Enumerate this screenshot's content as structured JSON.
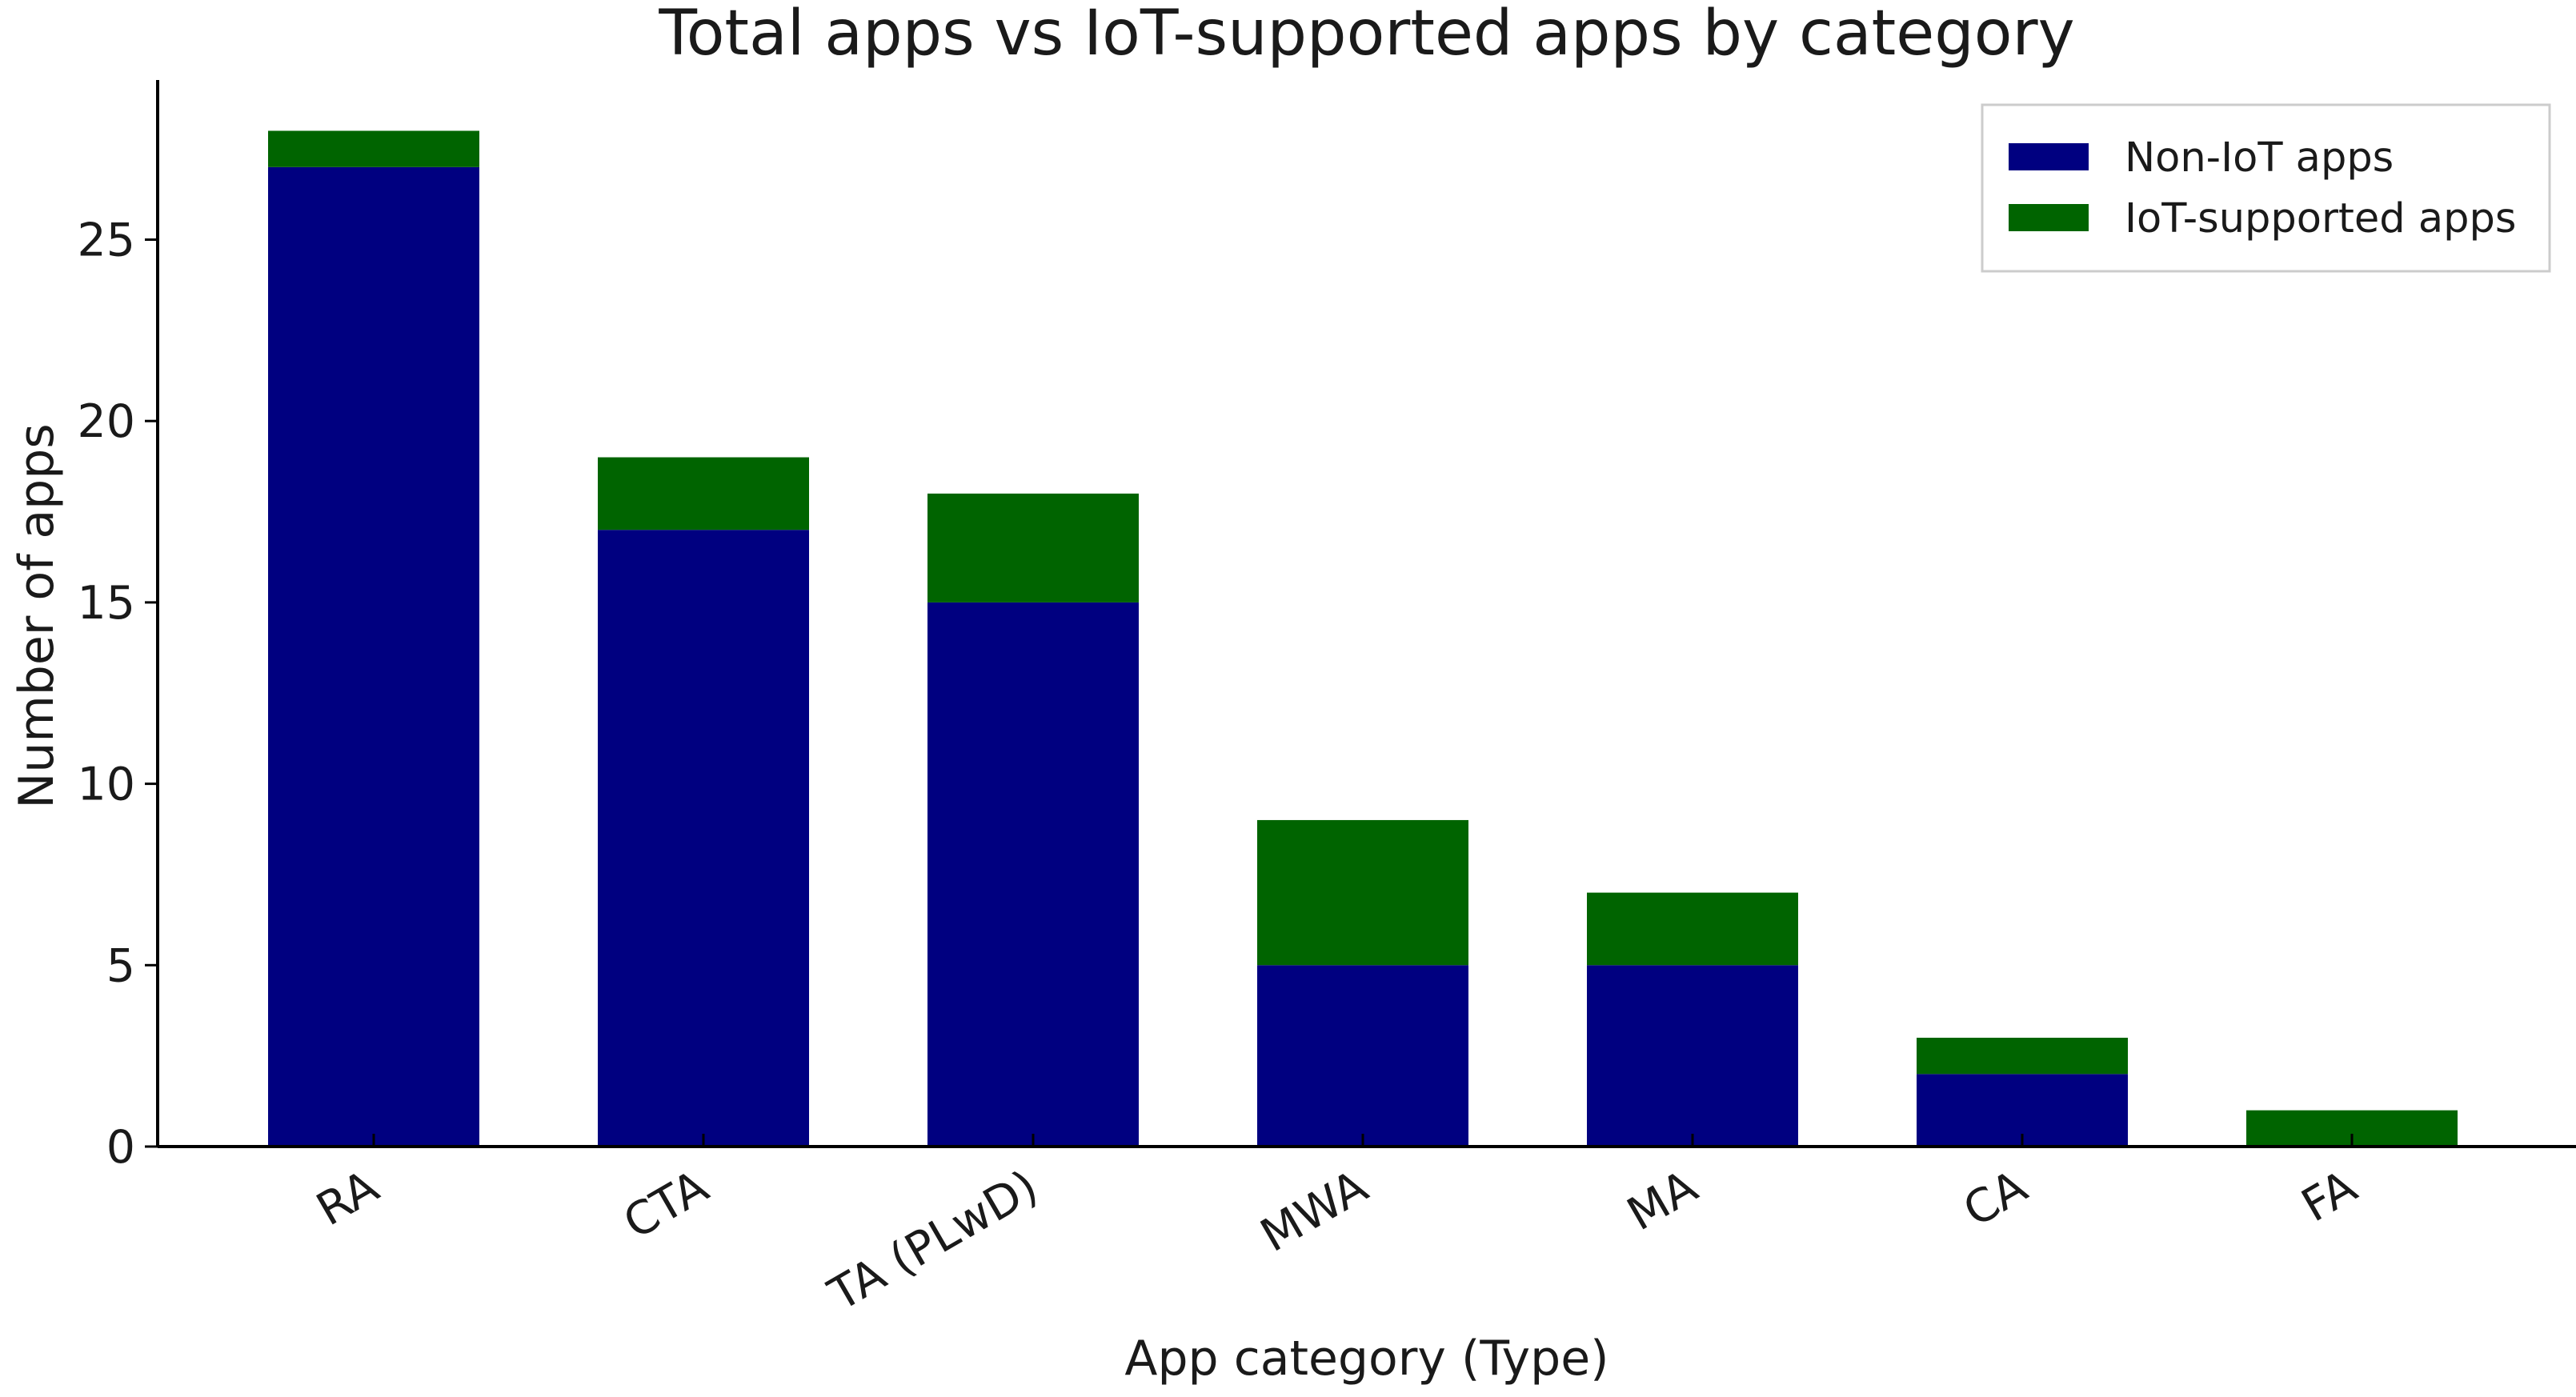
{
  "chart_data": {
    "type": "bar",
    "stacked": true,
    "title": "Total apps vs IoT-supported apps by category",
    "xlabel": "App category (Type)",
    "ylabel": "Number of apps",
    "categories": [
      "RA",
      "CTA",
      "TA (PLwD)",
      "MWA",
      "MA",
      "CA",
      "FA"
    ],
    "series": [
      {
        "name": "Non-IoT apps",
        "color": "#000080",
        "values": [
          27,
          17,
          15,
          5,
          5,
          2,
          0
        ]
      },
      {
        "name": "IoT-supported apps",
        "color": "#006400",
        "values": [
          1,
          2,
          3,
          4,
          2,
          1,
          1
        ]
      }
    ],
    "ylim": [
      0,
      29.4
    ],
    "yticks": [
      0,
      5,
      10,
      15,
      20,
      25
    ],
    "grid": false,
    "legend_position": "top-right"
  }
}
